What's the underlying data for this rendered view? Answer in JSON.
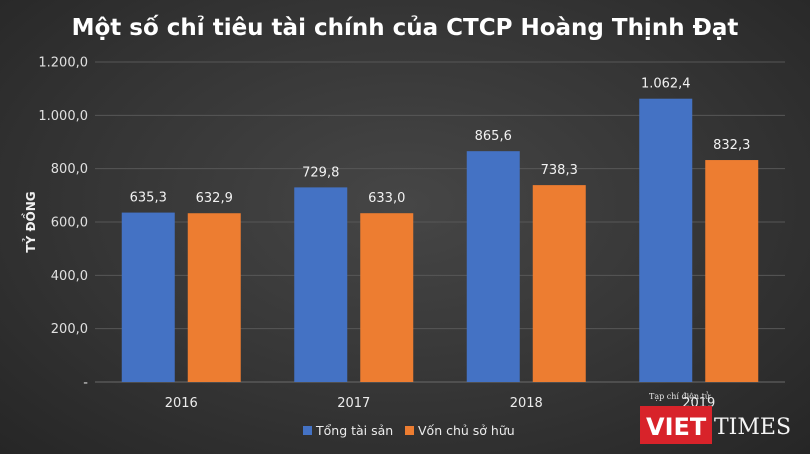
{
  "chart_data": {
    "type": "bar",
    "title": "Một số chỉ tiêu tài chính của CTCP Hoàng Thịnh Đạt",
    "ylabel": "TỶ ĐỒNG",
    "xlabel": "",
    "categories": [
      "2016",
      "2017",
      "2018",
      "2019"
    ],
    "series": [
      {
        "name": "Tổng tài sản",
        "color": "#4472c4",
        "values": [
          635.3,
          729.8,
          865.6,
          1062.4
        ],
        "labels": [
          "635,3",
          "729,8",
          "865,6",
          "1.062,4"
        ]
      },
      {
        "name": "Vốn chủ sở hữu",
        "color": "#ed7d31",
        "values": [
          632.9,
          633.0,
          738.3,
          832.3
        ],
        "labels": [
          "632,9",
          "633,0",
          "738,3",
          "832,3"
        ]
      }
    ],
    "ylim": [
      0,
      1200
    ],
    "yticks": [
      0,
      200,
      400,
      600,
      800,
      1000,
      1200
    ],
    "ytick_labels": [
      "-",
      "200,0",
      "400,0",
      "600,0",
      "800,0",
      "1.000,0",
      "1.200,0"
    ],
    "grid": true,
    "legend_position": "bottom-center"
  },
  "watermark": {
    "line1": "Tạp chí điện tử",
    "brand_left": "VIET",
    "brand_right": "TIMES",
    "brand_color": "#d8232a"
  }
}
